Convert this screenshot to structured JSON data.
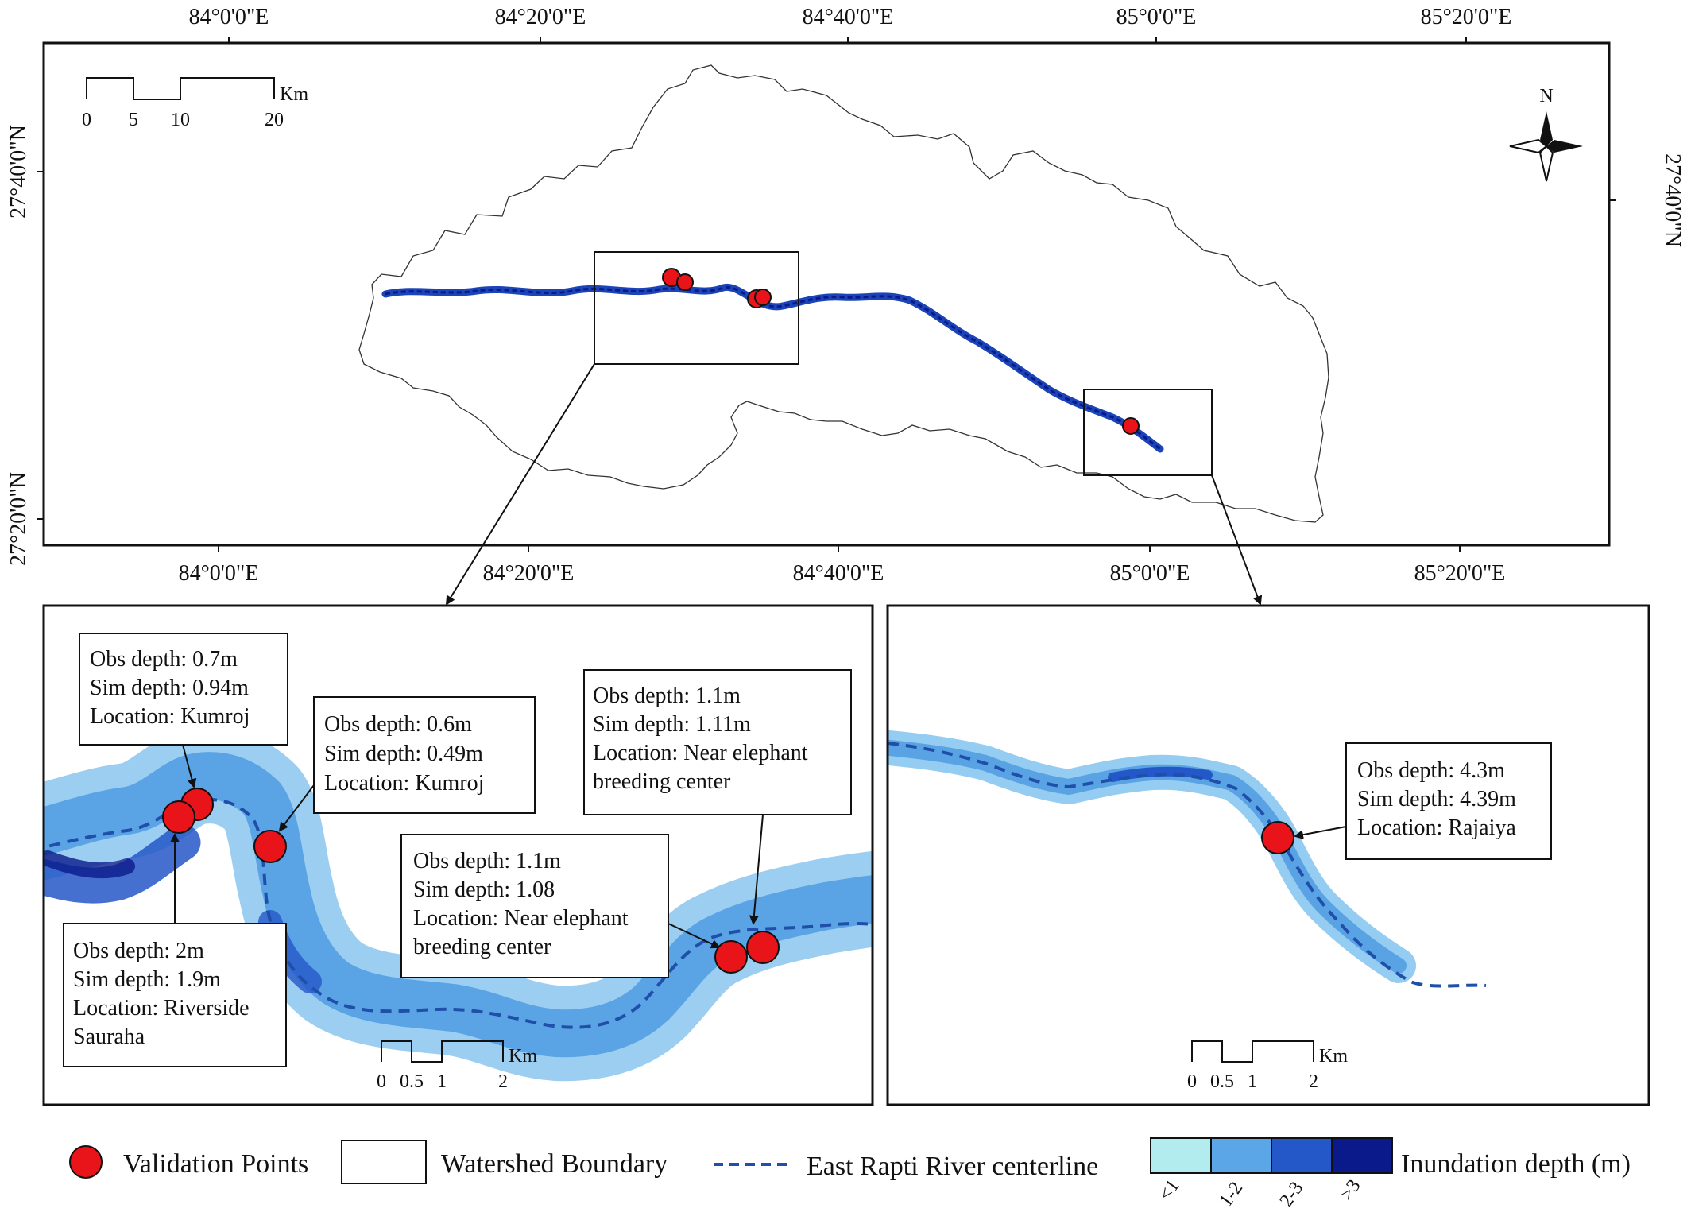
{
  "overview_map": {
    "top_lon_labels": [
      "84°0'0\"E",
      "84°20'0\"E",
      "84°40'0\"E",
      "85°0'0\"E",
      "85°20'0\"E"
    ],
    "bottom_lon_labels": [
      "84°0'0\"E",
      "84°20'0\"E",
      "84°40'0\"E",
      "85°0'0\"E",
      "85°20'0\"E"
    ],
    "left_lat_labels": [
      "27°40'0\"N",
      "27°20'0\"N"
    ],
    "right_lat_labels": [
      "27°40'0\"N"
    ],
    "scale_bar": {
      "ticks": [
        "0",
        "5",
        "10",
        "20"
      ],
      "unit": "Km"
    },
    "north_arrow_label": "N"
  },
  "inset_left": {
    "callouts": [
      {
        "id": "kumroj-a",
        "lines": [
          "Obs depth: 0.7m",
          "Sim depth: 0.94m",
          "Location: Kumroj"
        ]
      },
      {
        "id": "kumroj-b",
        "lines": [
          "Obs depth: 0.6m",
          "Sim depth: 0.49m",
          "Location: Kumroj"
        ]
      },
      {
        "id": "elephant-a",
        "lines": [
          "Obs depth: 1.1m",
          "Sim depth: 1.11m",
          "Location: Near elephant",
          "breeding center"
        ]
      },
      {
        "id": "elephant-b",
        "lines": [
          "Obs depth: 1.1m",
          "Sim depth: 1.08",
          "Location: Near elephant",
          "breeding center"
        ]
      },
      {
        "id": "sauraha",
        "lines": [
          "Obs depth: 2m",
          "Sim depth: 1.9m",
          "Location: Riverside",
          "Sauraha"
        ]
      }
    ],
    "scale_bar": {
      "ticks": [
        "0",
        "0.5",
        "1",
        "2"
      ],
      "unit": "Km"
    }
  },
  "inset_right": {
    "callouts": [
      {
        "id": "rajaiya",
        "lines": [
          "Obs depth: 4.3m",
          "Sim depth: 4.39m",
          "Location: Rajaiya"
        ]
      }
    ],
    "scale_bar": {
      "ticks": [
        "0",
        "0.5",
        "1",
        "2"
      ],
      "unit": "Km"
    }
  },
  "legend": {
    "validation_points": "Validation Points",
    "watershed_boundary": "Watershed Boundary",
    "river_centerline": "East Rapti River centerline",
    "inundation_title": "Inundation depth (m)",
    "depth_classes": [
      {
        "label": "<1",
        "color": "#b3ecef"
      },
      {
        "label": "1-2",
        "color": "#5aa6e6"
      },
      {
        "label": "2-3",
        "color": "#2457c8"
      },
      {
        "label": ">3",
        "color": "#0a1a8a"
      }
    ]
  },
  "colors": {
    "validation_point": "#e8141a",
    "river_centerline": "#1f4fa8",
    "frame": "#111111"
  }
}
